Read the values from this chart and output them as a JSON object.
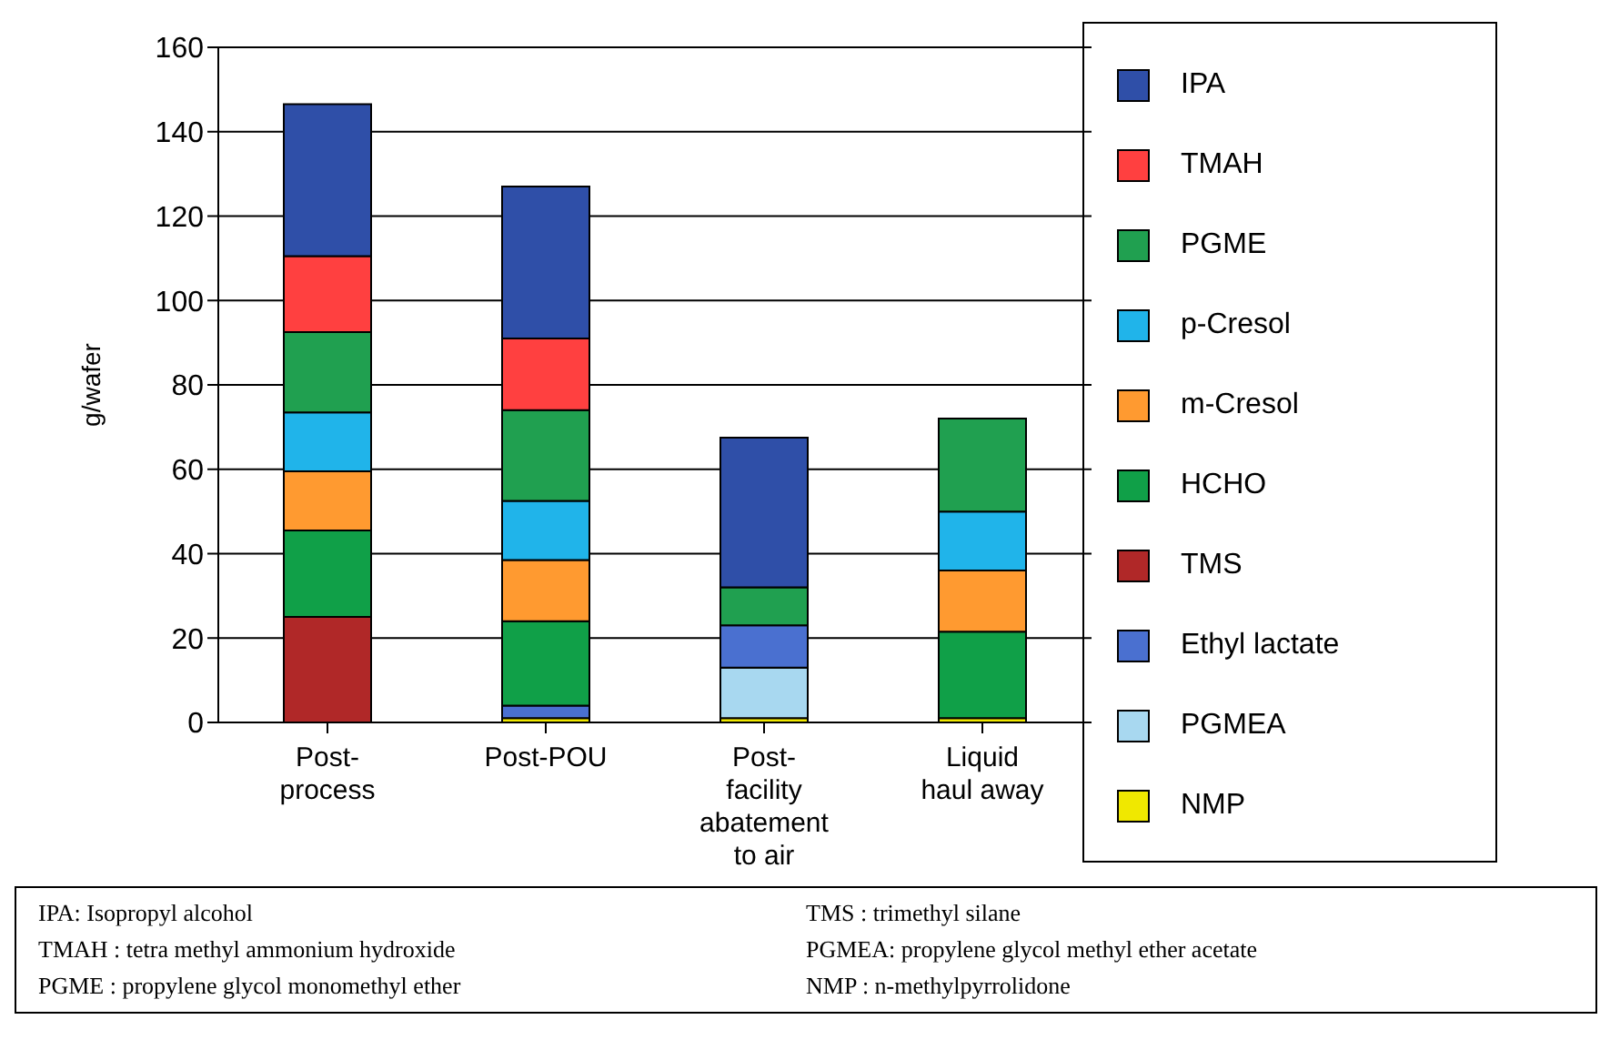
{
  "chart_data": {
    "type": "bar",
    "stacked": true,
    "ylabel": "g/wafer",
    "categories": [
      "Post-process",
      "Post-POU",
      "Post- facility abatement to air",
      "Liquid haul away"
    ],
    "series": [
      {
        "name": "NMP",
        "color": "#f0e800",
        "values": [
          0,
          1,
          1,
          1
        ]
      },
      {
        "name": "PGMEA",
        "color": "#a8d8f0",
        "values": [
          0,
          0,
          12,
          0
        ]
      },
      {
        "name": "Ethyl lactate",
        "color": "#4a70d0",
        "values": [
          0,
          3,
          10,
          0
        ]
      },
      {
        "name": "TMS",
        "color": "#b02828",
        "values": [
          25,
          0,
          0,
          0
        ]
      },
      {
        "name": "HCHO",
        "color": "#10a048",
        "values": [
          20.5,
          20,
          0,
          20.5
        ]
      },
      {
        "name": "m-Cresol",
        "color": "#ff9a30",
        "values": [
          14,
          14.5,
          0,
          14.5
        ]
      },
      {
        "name": "p-Cresol",
        "color": "#20b4ea",
        "values": [
          14,
          14,
          0,
          14
        ]
      },
      {
        "name": "PGME",
        "color": "#20a050",
        "values": [
          19,
          21.5,
          9,
          22
        ]
      },
      {
        "name": "TMAH",
        "color": "#ff4040",
        "values": [
          18,
          17,
          0,
          0
        ]
      },
      {
        "name": "IPA",
        "color": "#2f4fa8",
        "values": [
          36,
          36,
          35.5,
          0
        ]
      }
    ],
    "ylim": [
      0,
      160
    ],
    "yticks": [
      0,
      20,
      40,
      60,
      80,
      100,
      120,
      140,
      160
    ],
    "grid": "y",
    "legend": "right",
    "annotations": [
      "IPA:  Isopropyl alcohol",
      "TMAH : tetra methyl ammonium hydroxide",
      "PGME : propylene glycol monomethyl ether",
      "TMS : trimethyl silane",
      "PGMEA: propylene glycol methyl ether acetate",
      "NMP : n-methylpyrrolidone"
    ]
  }
}
